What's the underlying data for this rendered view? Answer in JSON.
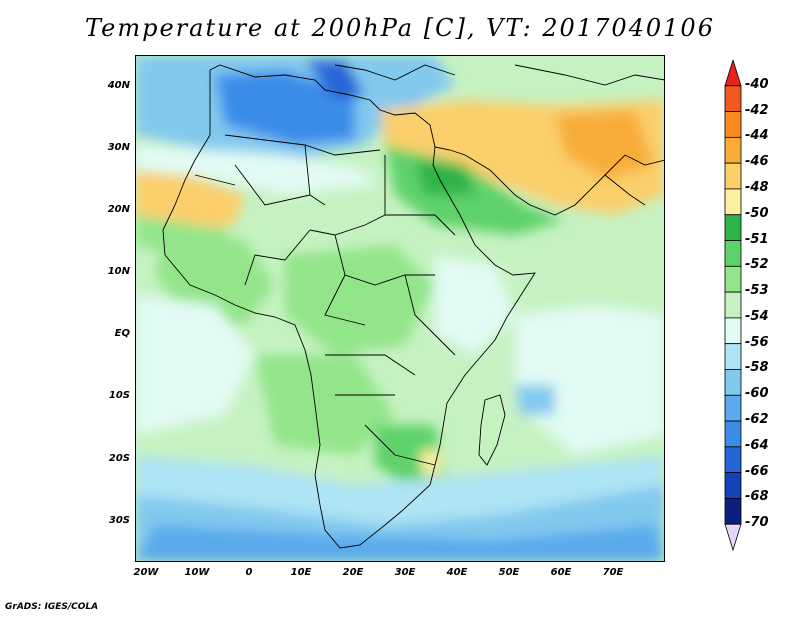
{
  "title": "Temperature at 200hPa [C], VT: 2017040106",
  "credit": "GrADS: IGES/COLA",
  "map": {
    "lat_labels": [
      "40N",
      "30N",
      "20N",
      "10N",
      "EQ",
      "10S",
      "20S",
      "30S"
    ],
    "lon_labels": [
      "20W",
      "10W",
      "0",
      "10E",
      "20E",
      "30E",
      "40E",
      "50E",
      "60E",
      "70E"
    ],
    "background_color": "#c6f2c2"
  },
  "colorbar": {
    "levels": [
      "-40",
      "-42",
      "-44",
      "-46",
      "-48",
      "-50",
      "-51",
      "-52",
      "-53",
      "-54",
      "-56",
      "-58",
      "-60",
      "-62",
      "-64",
      "-66",
      "-68",
      "-70"
    ],
    "colors": [
      "#e8231b",
      "#f05a1e",
      "#f88c1f",
      "#f8ad3a",
      "#fbcf6c",
      "#fdf0a0",
      "#2fb34a",
      "#5ed26a",
      "#93e58a",
      "#c6f2c2",
      "#e2fbf4",
      "#aee4f4",
      "#82c9ee",
      "#5aaaec",
      "#3b8ce8",
      "#2565d6",
      "#1343b8",
      "#0a1f7e",
      "#e6d6fa"
    ]
  }
}
